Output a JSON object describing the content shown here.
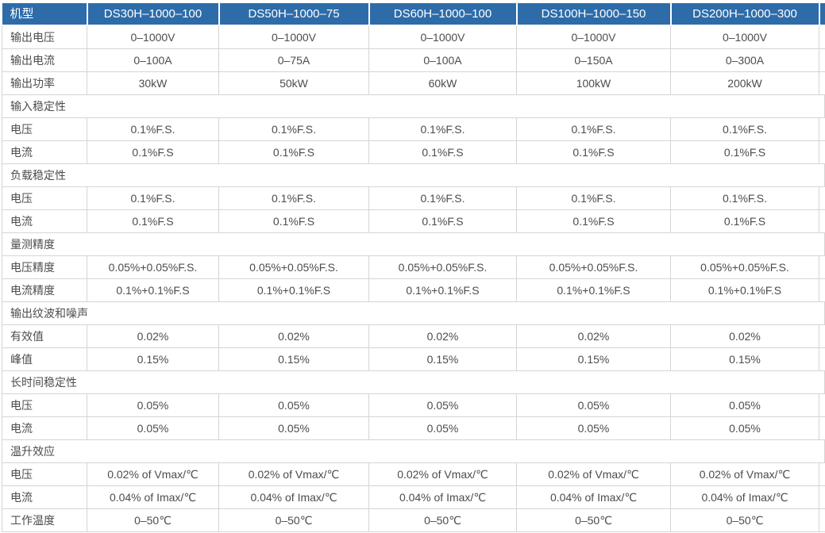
{
  "table": {
    "colors": {
      "header_bg": "#2d6ca9",
      "header_text": "#ffffff",
      "grid_line": "#d5d5d5",
      "body_text": "#4c4c4c"
    },
    "header": {
      "label": "机型",
      "models": [
        "DS30H–1000–100",
        "DS50H–1000–75",
        "DS60H–1000–100",
        "DS100H–1000–150",
        "DS200H–1000–300"
      ]
    },
    "rows": [
      {
        "type": "data",
        "label": "输出电压",
        "values": [
          "0–1000V",
          "0–1000V",
          "0–1000V",
          "0–1000V",
          "0–1000V"
        ]
      },
      {
        "type": "data",
        "label": "输出电流",
        "values": [
          "0–100A",
          "0–75A",
          "0–100A",
          "0–150A",
          "0–300A"
        ]
      },
      {
        "type": "data",
        "label": "输出功率",
        "values": [
          "30kW",
          "50kW",
          "60kW",
          "100kW",
          "200kW"
        ]
      },
      {
        "type": "section",
        "label": "输入稳定性"
      },
      {
        "type": "data",
        "label": "电压",
        "values": [
          "0.1%F.S.",
          "0.1%F.S.",
          "0.1%F.S.",
          "0.1%F.S.",
          "0.1%F.S."
        ]
      },
      {
        "type": "data",
        "label": "电流",
        "values": [
          "0.1%F.S",
          "0.1%F.S",
          "0.1%F.S",
          "0.1%F.S",
          "0.1%F.S"
        ]
      },
      {
        "type": "section",
        "label": "负载稳定性"
      },
      {
        "type": "data",
        "label": "电压",
        "values": [
          "0.1%F.S.",
          "0.1%F.S.",
          "0.1%F.S.",
          "0.1%F.S.",
          "0.1%F.S."
        ]
      },
      {
        "type": "data",
        "label": "电流",
        "values": [
          "0.1%F.S",
          "0.1%F.S",
          "0.1%F.S",
          "0.1%F.S",
          "0.1%F.S"
        ]
      },
      {
        "type": "section",
        "label": "量测精度"
      },
      {
        "type": "data",
        "label": "电压精度",
        "values": [
          "0.05%+0.05%F.S.",
          "0.05%+0.05%F.S.",
          "0.05%+0.05%F.S.",
          "0.05%+0.05%F.S.",
          "0.05%+0.05%F.S."
        ]
      },
      {
        "type": "data",
        "label": "电流精度",
        "values": [
          "0.1%+0.1%F.S",
          "0.1%+0.1%F.S",
          "0.1%+0.1%F.S",
          "0.1%+0.1%F.S",
          "0.1%+0.1%F.S"
        ]
      },
      {
        "type": "section",
        "label": "输出纹波和噪声"
      },
      {
        "type": "data",
        "label": "有效值",
        "values": [
          "0.02%",
          "0.02%",
          "0.02%",
          "0.02%",
          "0.02%"
        ]
      },
      {
        "type": "data",
        "label": "峰值",
        "values": [
          "0.15%",
          "0.15%",
          "0.15%",
          "0.15%",
          "0.15%"
        ]
      },
      {
        "type": "section",
        "label": "长时间稳定性"
      },
      {
        "type": "data",
        "label": "电压",
        "values": [
          "0.05%",
          "0.05%",
          "0.05%",
          "0.05%",
          "0.05%"
        ]
      },
      {
        "type": "data",
        "label": "电流",
        "values": [
          "0.05%",
          "0.05%",
          "0.05%",
          "0.05%",
          "0.05%"
        ]
      },
      {
        "type": "section",
        "label": "温升效应"
      },
      {
        "type": "data",
        "label": "电压",
        "values": [
          "0.02% of Vmax/℃",
          "0.02% of Vmax/℃",
          "0.02% of Vmax/℃",
          "0.02% of Vmax/℃",
          "0.02% of Vmax/℃"
        ]
      },
      {
        "type": "data",
        "label": "电流",
        "values": [
          "0.04% of Imax/℃",
          "0.04% of Imax/℃",
          "0.04% of Imax/℃",
          "0.04% of Imax/℃",
          "0.04% of Imax/℃"
        ]
      },
      {
        "type": "data",
        "label": "工作温度",
        "values": [
          "0–50℃",
          "0–50℃",
          "0–50℃",
          "0–50℃",
          "0–50℃"
        ]
      }
    ]
  }
}
